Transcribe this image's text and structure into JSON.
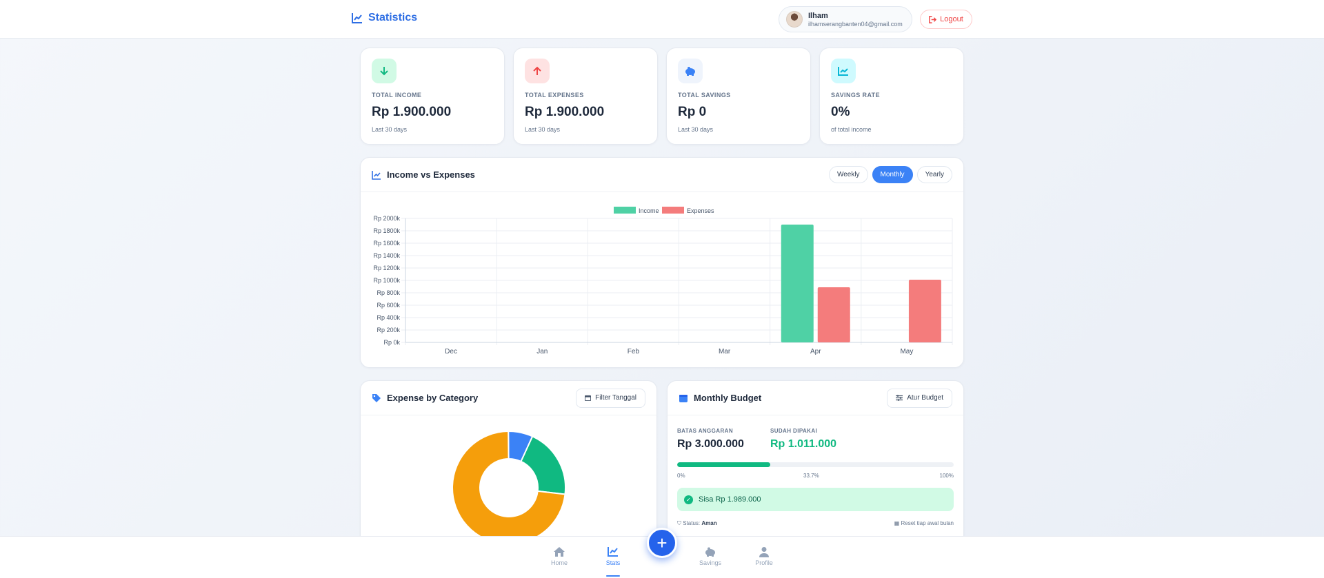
{
  "header": {
    "title": "Statistics",
    "user_name": "Ilham",
    "user_email": "ilhamserangbanten04@gmail.com",
    "logout_label": "Logout"
  },
  "stats": [
    {
      "label": "TOTAL INCOME",
      "value": "Rp 1.900.000",
      "sub": "Last 30 days",
      "icon": "arrow-down-icon",
      "color": "#10b981",
      "bg": "#d1fae5"
    },
    {
      "label": "TOTAL EXPENSES",
      "value": "Rp 1.900.000",
      "sub": "Last 30 days",
      "icon": "arrow-up-icon",
      "color": "#ef4444",
      "bg": "#fee2e2"
    },
    {
      "label": "TOTAL SAVINGS",
      "value": "Rp 0",
      "sub": "Last 30 days",
      "icon": "piggy-bank-icon",
      "color": "#3b82f6",
      "bg": "#eff4fc"
    },
    {
      "label": "SAVINGS RATE",
      "value": "0%",
      "sub": "of total income",
      "icon": "chart-line-icon",
      "color": "#06b6d4",
      "bg": "#cffafe"
    }
  ],
  "income_chart": {
    "title": "Income vs Expenses",
    "periods": [
      "Weekly",
      "Monthly",
      "Yearly"
    ],
    "active_period": "Monthly"
  },
  "category": {
    "title": "Expense by Category",
    "filter_label": "Filter Tanggal"
  },
  "budget": {
    "title": "Monthly Budget",
    "set_label": "Atur Budget",
    "limit_label": "BATAS ANGGARAN",
    "limit_value": "Rp 3.000.000",
    "used_label": "SUDAH DIPAKAI",
    "used_value": "Rp 1.011.000",
    "progress_percent": 33.7,
    "tick_min": "0%",
    "tick_mid": "33.7%",
    "tick_max": "100%",
    "remaining": "Sisa Rp 1.989.000",
    "status_label": "Status:",
    "status_value": "Aman",
    "reset_label": "Reset tiap awal bulan"
  },
  "nav": {
    "items": [
      {
        "label": "Home",
        "icon": "home-icon"
      },
      {
        "label": "Stats",
        "icon": "chart-line-icon"
      },
      {
        "label": "Savings",
        "icon": "piggy-bank-icon"
      },
      {
        "label": "Profile",
        "icon": "user-icon"
      }
    ],
    "active": "Stats"
  },
  "chart_data": [
    {
      "type": "bar",
      "categories": [
        "Dec",
        "Jan",
        "Feb",
        "Mar",
        "Apr",
        "May"
      ],
      "series": [
        {
          "name": "Income",
          "values": [
            0,
            0,
            0,
            0,
            1900,
            0
          ],
          "color": "#4fd1a5"
        },
        {
          "name": "Expenses",
          "values": [
            0,
            0,
            0,
            0,
            889,
            1011
          ],
          "color": "#f47c7c"
        }
      ],
      "ylim": [
        0,
        2000
      ],
      "yticks": [
        "Rp 0k",
        "Rp 200k",
        "Rp 400k",
        "Rp 600k",
        "Rp 800k",
        "Rp 1000k",
        "Rp 1200k",
        "Rp 1400k",
        "Rp 1600k",
        "Rp 1800k",
        "Rp 2000k"
      ],
      "grid": true,
      "legend": "top-center"
    },
    {
      "type": "pie",
      "slices": [
        {
          "value": 73,
          "color": "#f59e0b"
        },
        {
          "value": 20,
          "color": "#10b981"
        },
        {
          "value": 7,
          "color": "#3b82f6"
        }
      ]
    }
  ]
}
